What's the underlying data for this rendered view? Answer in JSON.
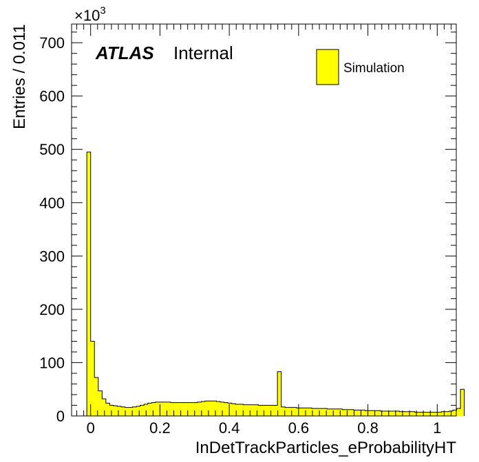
{
  "chart_data": {
    "type": "bar",
    "style": "step-histogram",
    "title": "",
    "xlabel": "InDetTrackParticles_eProbabilityHT",
    "ylabel": "Entries / 0.011",
    "y_multiplier_label": "×10",
    "y_multiplier_exponent": "3",
    "xlim": [
      -0.055,
      1.055
    ],
    "ylim": [
      0,
      735
    ],
    "x_ticks": [
      0,
      0.2,
      0.4,
      0.6,
      0.8,
      1
    ],
    "x_tick_labels": [
      "0",
      "0.2",
      "0.4",
      "0.6",
      "0.8",
      "1"
    ],
    "y_ticks": [
      0,
      100,
      200,
      300,
      400,
      500,
      600,
      700
    ],
    "y_tick_labels": [
      "0",
      "100",
      "200",
      "300",
      "400",
      "500",
      "600",
      "700"
    ],
    "grid": false,
    "legend_position": "top-right",
    "fill_color": "#ffff00",
    "line_color": "#000000",
    "series": [
      {
        "name": "Simulation",
        "x_start": -0.011,
        "bin_width": 0.011,
        "values": [
          495,
          140,
          72,
          47,
          32,
          24,
          20,
          19,
          18,
          17,
          16,
          16,
          17,
          18,
          20,
          22,
          24,
          25,
          26,
          26,
          26,
          26,
          25,
          25,
          25,
          25,
          25,
          25,
          25,
          26,
          27,
          28,
          28,
          28,
          27,
          26,
          25,
          24,
          23,
          22,
          22,
          21,
          21,
          21,
          21,
          20,
          20,
          20,
          20,
          20,
          83,
          17,
          16,
          16,
          16,
          15,
          15,
          15,
          15,
          14,
          14,
          14,
          14,
          13,
          13,
          13,
          13,
          12,
          12,
          12,
          11,
          11,
          11,
          10,
          10,
          10,
          10,
          9,
          9,
          9,
          9,
          9,
          8,
          8,
          8,
          8,
          7,
          7,
          7,
          7,
          7,
          7,
          7,
          8,
          8,
          9,
          11,
          14,
          50
        ]
      }
    ]
  },
  "watermark": {
    "experiment": "ATLAS",
    "status": "Internal"
  }
}
